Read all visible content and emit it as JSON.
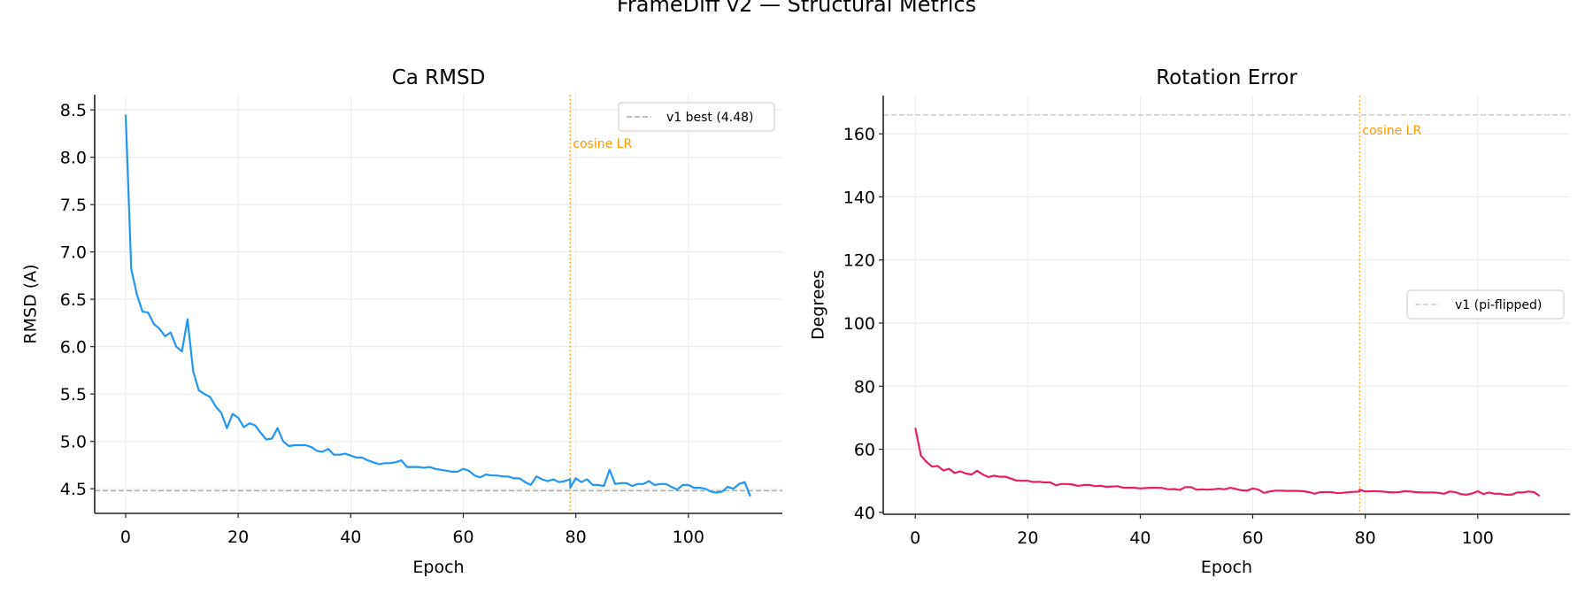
{
  "suptitle": "FrameDiff v2 — Structural Metrics",
  "chart_data": [
    {
      "type": "line",
      "title": "Ca RMSD",
      "xlabel": "Epoch",
      "ylabel": "RMSD (A)",
      "xlim": [
        -5.5,
        116.7
      ],
      "ylim": [
        4.24,
        8.66
      ],
      "xticks": [
        0,
        20,
        40,
        60,
        80,
        100
      ],
      "yticks": [
        4.5,
        5.0,
        5.5,
        6.0,
        6.5,
        7.0,
        7.5,
        8.0,
        8.5
      ],
      "ytick_labels": [
        "4.5",
        "5.0",
        "5.5",
        "6.0",
        "6.5",
        "7.0",
        "7.5",
        "8.0",
        "8.5"
      ],
      "grid": true,
      "legend_position": "top-right",
      "series": [
        {
          "color": "#2196F3",
          "x": [
            0,
            1,
            2,
            3,
            4,
            5,
            6,
            7,
            8,
            9,
            10,
            11,
            12,
            13,
            14,
            15,
            16,
            17,
            18,
            19,
            20,
            21,
            22,
            23,
            24,
            25,
            26,
            27,
            28,
            29,
            30,
            31,
            32,
            33,
            34,
            35,
            36,
            37,
            38,
            39,
            40,
            41,
            42,
            43,
            44,
            45,
            46,
            47,
            48,
            49,
            50,
            51,
            52,
            53,
            54,
            55,
            56,
            57,
            58,
            59,
            60,
            61,
            62,
            63,
            64,
            65,
            66,
            67,
            68,
            69,
            70,
            71,
            72,
            73,
            74,
            75,
            76,
            77,
            78,
            79,
            79,
            80,
            81,
            82,
            83,
            84,
            85,
            86,
            87,
            88,
            89,
            90,
            91,
            92,
            93,
            94,
            95,
            96,
            97,
            98,
            99,
            100,
            101,
            102,
            103,
            104,
            105,
            106,
            107,
            108,
            109,
            110,
            111
          ],
          "y": [
            8.45,
            6.82,
            6.55,
            6.37,
            6.36,
            6.24,
            6.19,
            6.11,
            6.15,
            6.0,
            5.95,
            6.29,
            5.74,
            5.54,
            5.5,
            5.47,
            5.37,
            5.3,
            5.14,
            5.29,
            5.25,
            5.15,
            5.19,
            5.17,
            5.09,
            5.02,
            5.03,
            5.14,
            5.0,
            4.95,
            4.96,
            4.96,
            4.96,
            4.94,
            4.9,
            4.89,
            4.92,
            4.86,
            4.86,
            4.87,
            4.85,
            4.83,
            4.83,
            4.8,
            4.78,
            4.76,
            4.77,
            4.77,
            4.78,
            4.8,
            4.73,
            4.73,
            4.73,
            4.72,
            4.73,
            4.71,
            4.7,
            4.69,
            4.68,
            4.68,
            4.71,
            4.69,
            4.64,
            4.62,
            4.65,
            4.64,
            4.64,
            4.63,
            4.63,
            4.61,
            4.61,
            4.57,
            4.54,
            4.63,
            4.6,
            4.58,
            4.6,
            4.57,
            4.58,
            4.6,
            4.51,
            4.61,
            4.57,
            4.6,
            4.54,
            4.54,
            4.53,
            4.7,
            4.55,
            4.56,
            4.56,
            4.53,
            4.55,
            4.55,
            4.58,
            4.54,
            4.55,
            4.55,
            4.52,
            4.49,
            4.54,
            4.54,
            4.51,
            4.51,
            4.5,
            4.47,
            4.46,
            4.47,
            4.52,
            4.5,
            4.55,
            4.57,
            4.42
          ]
        }
      ],
      "hline": {
        "value": 4.48,
        "label": "v1 best (4.48)",
        "color": "#AAAAAA"
      },
      "vline": {
        "value": 79,
        "label": "cosine LR",
        "color": "#FF9800"
      }
    },
    {
      "type": "line",
      "title": "Rotation Error",
      "xlabel": "Epoch",
      "ylabel": "Degrees",
      "xlim": [
        -5.7,
        116.4
      ],
      "ylim": [
        39.4,
        172.1
      ],
      "xticks": [
        0,
        20,
        40,
        60,
        80,
        100
      ],
      "yticks": [
        40,
        60,
        80,
        100,
        120,
        140,
        160
      ],
      "ytick_labels": [
        "40",
        "60",
        "80",
        "100",
        "120",
        "140",
        "160"
      ],
      "grid": true,
      "legend_position": "center-right",
      "series": [
        {
          "color": "#E91E63",
          "x": [
            0,
            1,
            2,
            3,
            4,
            5,
            6,
            7,
            8,
            9,
            10,
            11,
            12,
            13,
            14,
            15,
            16,
            17,
            18,
            19,
            20,
            21,
            22,
            23,
            24,
            25,
            26,
            27,
            28,
            29,
            30,
            31,
            32,
            33,
            34,
            35,
            36,
            37,
            38,
            39,
            40,
            41,
            42,
            43,
            44,
            45,
            46,
            47,
            48,
            49,
            50,
            51,
            52,
            53,
            54,
            55,
            56,
            57,
            58,
            59,
            60,
            61,
            62,
            63,
            64,
            65,
            66,
            67,
            68,
            69,
            70,
            71,
            72,
            73,
            74,
            75,
            76,
            77,
            78,
            79,
            79,
            80,
            81,
            82,
            83,
            84,
            85,
            86,
            87,
            88,
            89,
            90,
            91,
            92,
            93,
            94,
            95,
            96,
            97,
            98,
            99,
            100,
            101,
            102,
            103,
            104,
            105,
            106,
            107,
            108,
            109,
            110,
            111
          ],
          "y": [
            66.8,
            58.0,
            56.0,
            54.5,
            54.7,
            53.3,
            53.8,
            52.5,
            53.0,
            52.3,
            52.0,
            53.2,
            52.0,
            51.2,
            51.6,
            51.3,
            51.3,
            50.7,
            50.1,
            50.0,
            50.0,
            49.6,
            49.7,
            49.5,
            49.5,
            48.6,
            49.0,
            49.0,
            48.8,
            48.4,
            48.7,
            48.7,
            48.3,
            48.4,
            48.1,
            48.2,
            48.3,
            47.8,
            47.8,
            47.8,
            47.6,
            47.7,
            47.8,
            47.8,
            47.7,
            47.3,
            47.4,
            47.1,
            48.0,
            48.0,
            47.2,
            47.3,
            47.2,
            47.3,
            47.5,
            47.3,
            47.8,
            47.4,
            47.0,
            46.9,
            47.6,
            47.2,
            46.2,
            46.6,
            46.9,
            46.9,
            46.8,
            46.8,
            46.8,
            46.7,
            46.4,
            45.9,
            46.4,
            46.4,
            46.4,
            46.1,
            46.2,
            46.4,
            46.5,
            46.6,
            47.2,
            46.6,
            46.7,
            46.7,
            46.6,
            46.4,
            46.3,
            46.4,
            46.7,
            46.6,
            46.4,
            46.3,
            46.3,
            46.3,
            46.2,
            45.9,
            46.6,
            46.4,
            45.8,
            45.6,
            46.0,
            46.7,
            45.8,
            46.3,
            45.9,
            45.9,
            45.6,
            45.6,
            46.3,
            46.3,
            46.6,
            46.4,
            45.2
          ]
        }
      ],
      "hline": {
        "value": 166,
        "label": "v1 (pi-flipped)",
        "color": "#CCCCCC"
      },
      "vline": {
        "value": 79,
        "label": "cosine LR",
        "color": "#FF9800"
      }
    }
  ]
}
